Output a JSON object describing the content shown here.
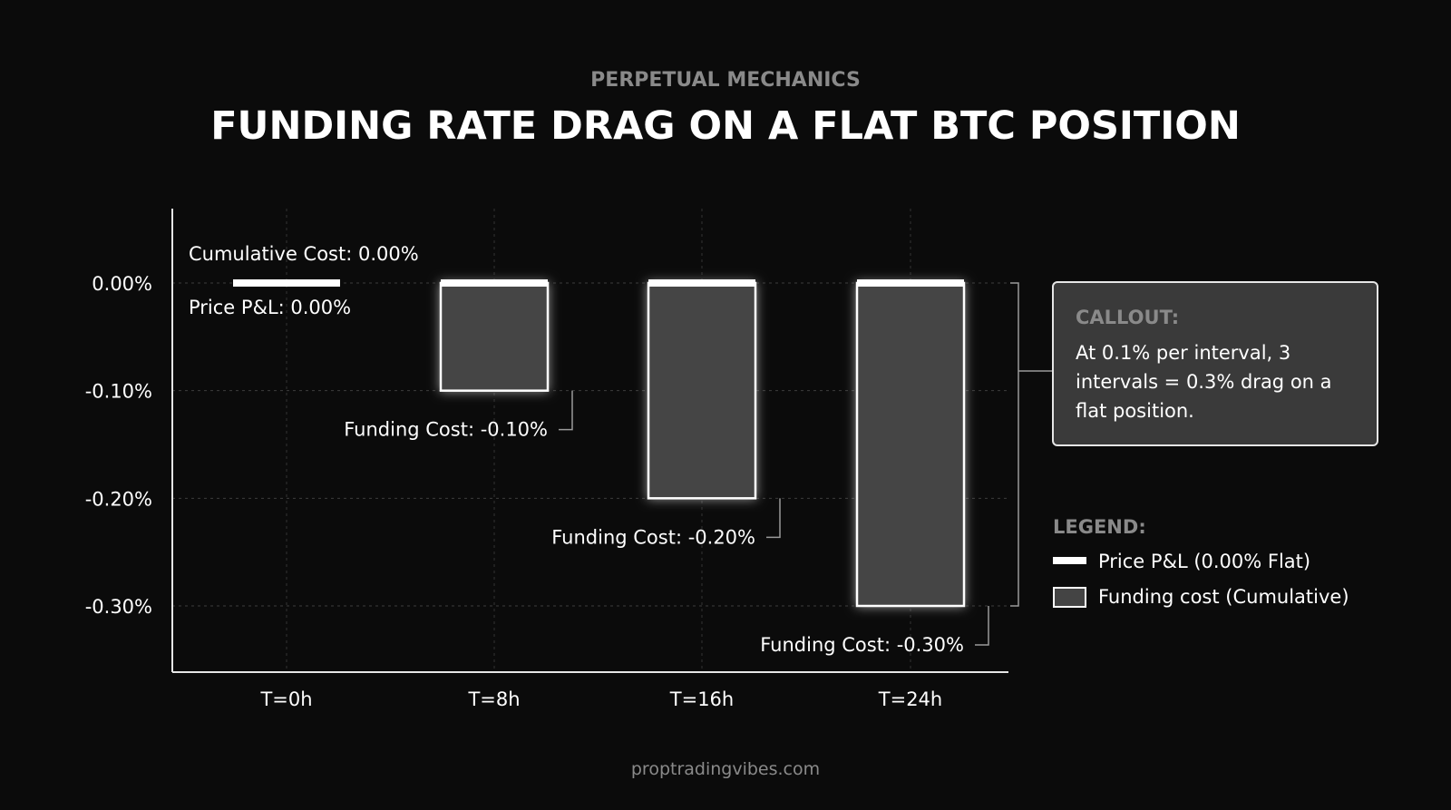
{
  "header": {
    "eyebrow": "PERPETUAL MECHANICS",
    "title": "FUNDING RATE DRAG ON A FLAT BTC POSITION"
  },
  "chart_data": {
    "type": "bar",
    "categories": [
      "T=0h",
      "T=8h",
      "T=16h",
      "T=24h"
    ],
    "yticks": [
      0.0,
      -0.1,
      -0.2,
      -0.3
    ],
    "ytick_labels": [
      "0.00%",
      "-0.10%",
      "-0.20%",
      "-0.30%"
    ],
    "ylim": [
      -0.36,
      0.07
    ],
    "grid": true,
    "series": [
      {
        "name": "Price P&L (0.00% Flat)",
        "values": [
          0.0,
          0.0,
          0.0,
          0.0
        ]
      },
      {
        "name": "Funding cost (Cumulative)",
        "values": [
          0.0,
          -0.1,
          -0.2,
          -0.3
        ]
      }
    ],
    "annotations": {
      "cumulative": "Cumulative Cost: 0.00%",
      "pnl": "Price P&L: 0.00%",
      "funding": [
        "",
        "Funding Cost: -0.10%",
        "Funding Cost: -0.20%",
        "Funding Cost: -0.30%"
      ]
    },
    "legend": {
      "title": "LEGEND:",
      "placement": "right",
      "items": [
        "Price P&L (0.00% Flat)",
        "Funding cost (Cumulative)"
      ]
    }
  },
  "callout": {
    "title": "CALLOUT:",
    "lines": [
      "At 0.1% per interval, 3",
      "intervals = 0.3% drag on a",
      "flat position."
    ]
  },
  "footer": {
    "source": "proptradingvibes.com"
  },
  "colors": {
    "background": "#0b0b0b",
    "bar_fill": "#444444",
    "bar_stroke": "#ffffff",
    "muted_text": "#8a8a8a",
    "callout_fill": "#3a3a3a"
  }
}
